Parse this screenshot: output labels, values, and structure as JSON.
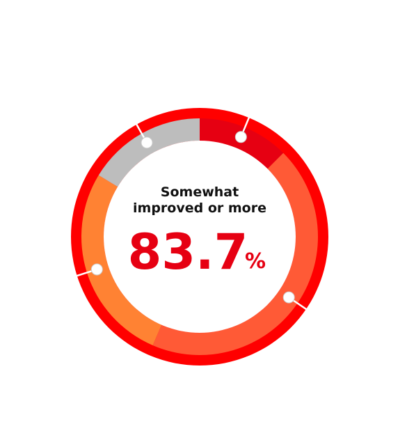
{
  "chart_data": {
    "type": "donut",
    "categories": [
      null,
      null,
      null,
      null
    ],
    "values": [
      12.5,
      44.0,
      27.2,
      16.3
    ],
    "colors": [
      "#e60012",
      "#ff5a36",
      "#ff8233",
      "#bdbdbd"
    ],
    "ring_color": "#ff0000",
    "center_label": [
      "Somewhat",
      "improved or more"
    ],
    "center_value": "83.7",
    "center_unit": "%"
  }
}
